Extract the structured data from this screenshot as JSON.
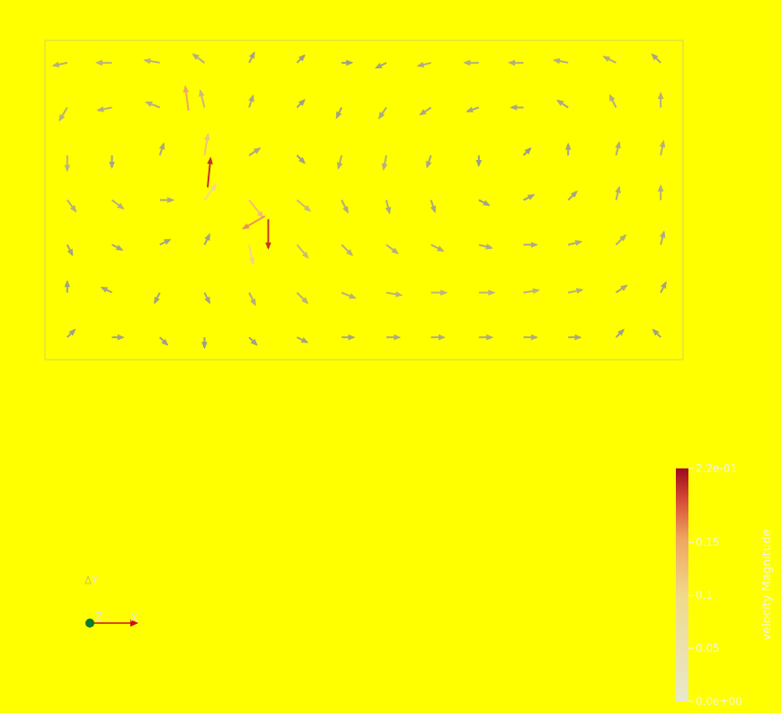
{
  "chart_data": {
    "type": "vector_field",
    "tick_labels": false,
    "xlim": [
      0,
      2
    ],
    "ylim": [
      0,
      1
    ],
    "vectors": [
      [
        0.07,
        0.93,
        -0.05,
        -0.01
      ],
      [
        0.21,
        0.93,
        -0.06,
        0
      ],
      [
        0.36,
        0.93,
        -0.06,
        0.01
      ],
      [
        0.5,
        0.93,
        -0.04,
        0.03
      ],
      [
        0.64,
        0.93,
        0.01,
        0.02
      ],
      [
        0.79,
        0.93,
        0.01,
        0.01
      ],
      [
        0.93,
        0.93,
        0.01,
        0
      ],
      [
        1.07,
        0.93,
        -0.02,
        -0.01
      ],
      [
        1.21,
        0.93,
        -0.04,
        -0.01
      ],
      [
        1.36,
        0.93,
        -0.05,
        0
      ],
      [
        1.5,
        0.93,
        -0.05,
        0
      ],
      [
        1.64,
        0.93,
        -0.05,
        0.01
      ],
      [
        1.79,
        0.93,
        -0.04,
        0.02
      ],
      [
        1.93,
        0.93,
        -0.02,
        0.02
      ],
      [
        0.07,
        0.79,
        -0.03,
        -0.05
      ],
      [
        0.21,
        0.79,
        -0.05,
        -0.01
      ],
      [
        0.36,
        0.79,
        -0.05,
        0.02
      ],
      [
        0.5,
        0.79,
        -0.02,
        0.08
      ],
      [
        0.64,
        0.79,
        0.01,
        0.03
      ],
      [
        0.79,
        0.79,
        0.01,
        0.01
      ],
      [
        0.93,
        0.79,
        -0.01,
        -0.02
      ],
      [
        1.07,
        0.79,
        -0.02,
        -0.03
      ],
      [
        1.21,
        0.79,
        -0.03,
        -0.02
      ],
      [
        1.36,
        0.79,
        -0.03,
        -0.01
      ],
      [
        1.5,
        0.79,
        -0.03,
        0
      ],
      [
        1.64,
        0.79,
        -0.03,
        0.02
      ],
      [
        1.79,
        0.79,
        -0.02,
        0.04
      ],
      [
        1.93,
        0.79,
        0,
        0.05
      ],
      [
        0.07,
        0.64,
        0,
        -0.06
      ],
      [
        0.21,
        0.64,
        0,
        -0.03
      ],
      [
        0.36,
        0.64,
        0.01,
        0.03
      ],
      [
        0.5,
        0.64,
        0.02,
        0.12
      ],
      [
        0.64,
        0.64,
        0.03,
        0.02
      ],
      [
        0.79,
        0.64,
        0.01,
        -0.01
      ],
      [
        0.93,
        0.64,
        -0.01,
        -0.04
      ],
      [
        1.07,
        0.64,
        -0.01,
        -0.05
      ],
      [
        1.21,
        0.64,
        -0.01,
        -0.03
      ],
      [
        1.36,
        0.64,
        0,
        -0.01
      ],
      [
        1.5,
        0.64,
        0.005,
        0.005
      ],
      [
        1.64,
        0.64,
        0,
        0.02
      ],
      [
        1.79,
        0.64,
        0.01,
        0.04
      ],
      [
        1.93,
        0.64,
        0.01,
        0.05
      ],
      [
        0.07,
        0.5,
        0.03,
        -0.04
      ],
      [
        0.21,
        0.5,
        0.04,
        -0.03
      ],
      [
        0.36,
        0.5,
        0.04,
        0
      ],
      [
        0.5,
        0.5,
        0.06,
        0.08
      ],
      [
        0.64,
        0.5,
        0.08,
        -0.1
      ],
      [
        0.79,
        0.5,
        0.06,
        -0.05
      ],
      [
        0.93,
        0.5,
        0.02,
        -0.04
      ],
      [
        1.07,
        0.5,
        0.01,
        -0.04
      ],
      [
        1.21,
        0.5,
        0.01,
        -0.03
      ],
      [
        1.36,
        0.5,
        0.02,
        -0.01
      ],
      [
        1.5,
        0.5,
        0.02,
        0.01
      ],
      [
        1.64,
        0.5,
        0.02,
        0.02
      ],
      [
        1.79,
        0.5,
        0.01,
        0.04
      ],
      [
        1.93,
        0.5,
        0,
        0.05
      ],
      [
        0.07,
        0.36,
        0.01,
        -0.02
      ],
      [
        0.21,
        0.36,
        0.02,
        -0.01
      ],
      [
        0.36,
        0.36,
        0.02,
        0.01
      ],
      [
        0.5,
        0.36,
        0.01,
        0.02
      ],
      [
        0.64,
        0.36,
        0.02,
        -0.1
      ],
      [
        0.79,
        0.36,
        0.05,
        -0.06
      ],
      [
        0.93,
        0.36,
        0.04,
        -0.04
      ],
      [
        1.07,
        0.36,
        0.04,
        -0.03
      ],
      [
        1.21,
        0.36,
        0.04,
        -0.02
      ],
      [
        1.36,
        0.36,
        0.04,
        -0.01
      ],
      [
        1.5,
        0.36,
        0.04,
        0
      ],
      [
        1.64,
        0.36,
        0.04,
        0.01
      ],
      [
        1.79,
        0.36,
        0.03,
        0.03
      ],
      [
        1.93,
        0.36,
        0.01,
        0.04
      ],
      [
        0.07,
        0.21,
        0,
        0.02
      ],
      [
        0.21,
        0.21,
        -0.02,
        0.01
      ],
      [
        0.36,
        0.21,
        -0.01,
        -0.02
      ],
      [
        0.5,
        0.21,
        0.01,
        -0.02
      ],
      [
        0.64,
        0.21,
        0.02,
        -0.04
      ],
      [
        0.79,
        0.21,
        0.04,
        -0.04
      ],
      [
        0.93,
        0.21,
        0.05,
        -0.02
      ],
      [
        1.07,
        0.21,
        0.06,
        -0.01
      ],
      [
        1.21,
        0.21,
        0.06,
        0
      ],
      [
        1.36,
        0.21,
        0.06,
        0
      ],
      [
        1.5,
        0.21,
        0.06,
        0.01
      ],
      [
        1.64,
        0.21,
        0.05,
        0.01
      ],
      [
        1.79,
        0.21,
        0.03,
        0.02
      ],
      [
        1.93,
        0.21,
        0.01,
        0.02
      ],
      [
        0.07,
        0.07,
        0.01,
        0.01
      ],
      [
        0.21,
        0.07,
        0.02,
        0
      ],
      [
        0.36,
        0.07,
        0.01,
        -0.01
      ],
      [
        0.5,
        0.07,
        0,
        -0.01
      ],
      [
        0.64,
        0.07,
        0.01,
        -0.01
      ],
      [
        0.79,
        0.07,
        0.02,
        -0.01
      ],
      [
        0.93,
        0.07,
        0.03,
        0
      ],
      [
        1.07,
        0.07,
        0.04,
        0
      ],
      [
        1.21,
        0.07,
        0.04,
        0
      ],
      [
        1.36,
        0.07,
        0.04,
        0
      ],
      [
        1.5,
        0.07,
        0.04,
        0
      ],
      [
        1.64,
        0.07,
        0.03,
        0
      ],
      [
        1.79,
        0.07,
        0.01,
        0.01
      ],
      [
        1.93,
        0.07,
        -0.01,
        0.01
      ],
      [
        0.69,
        0.45,
        -0.14,
        -0.08
      ],
      [
        0.7,
        0.44,
        0,
        -0.2
      ],
      [
        0.51,
        0.54,
        0.02,
        0.2
      ],
      [
        0.45,
        0.78,
        -0.02,
        0.15
      ]
    ],
    "colorbar": {
      "title": "velocity Magnitude",
      "range": [
        0,
        0.22
      ],
      "ticks": [
        {
          "value": 0,
          "label": "0.0e+00"
        },
        0.05,
        0.1,
        0.15,
        {
          "value": 0.22,
          "label": "2.2e-01"
        }
      ]
    }
  },
  "orientation_axes": {
    "labels": [
      "Y",
      "Z",
      "X"
    ]
  }
}
